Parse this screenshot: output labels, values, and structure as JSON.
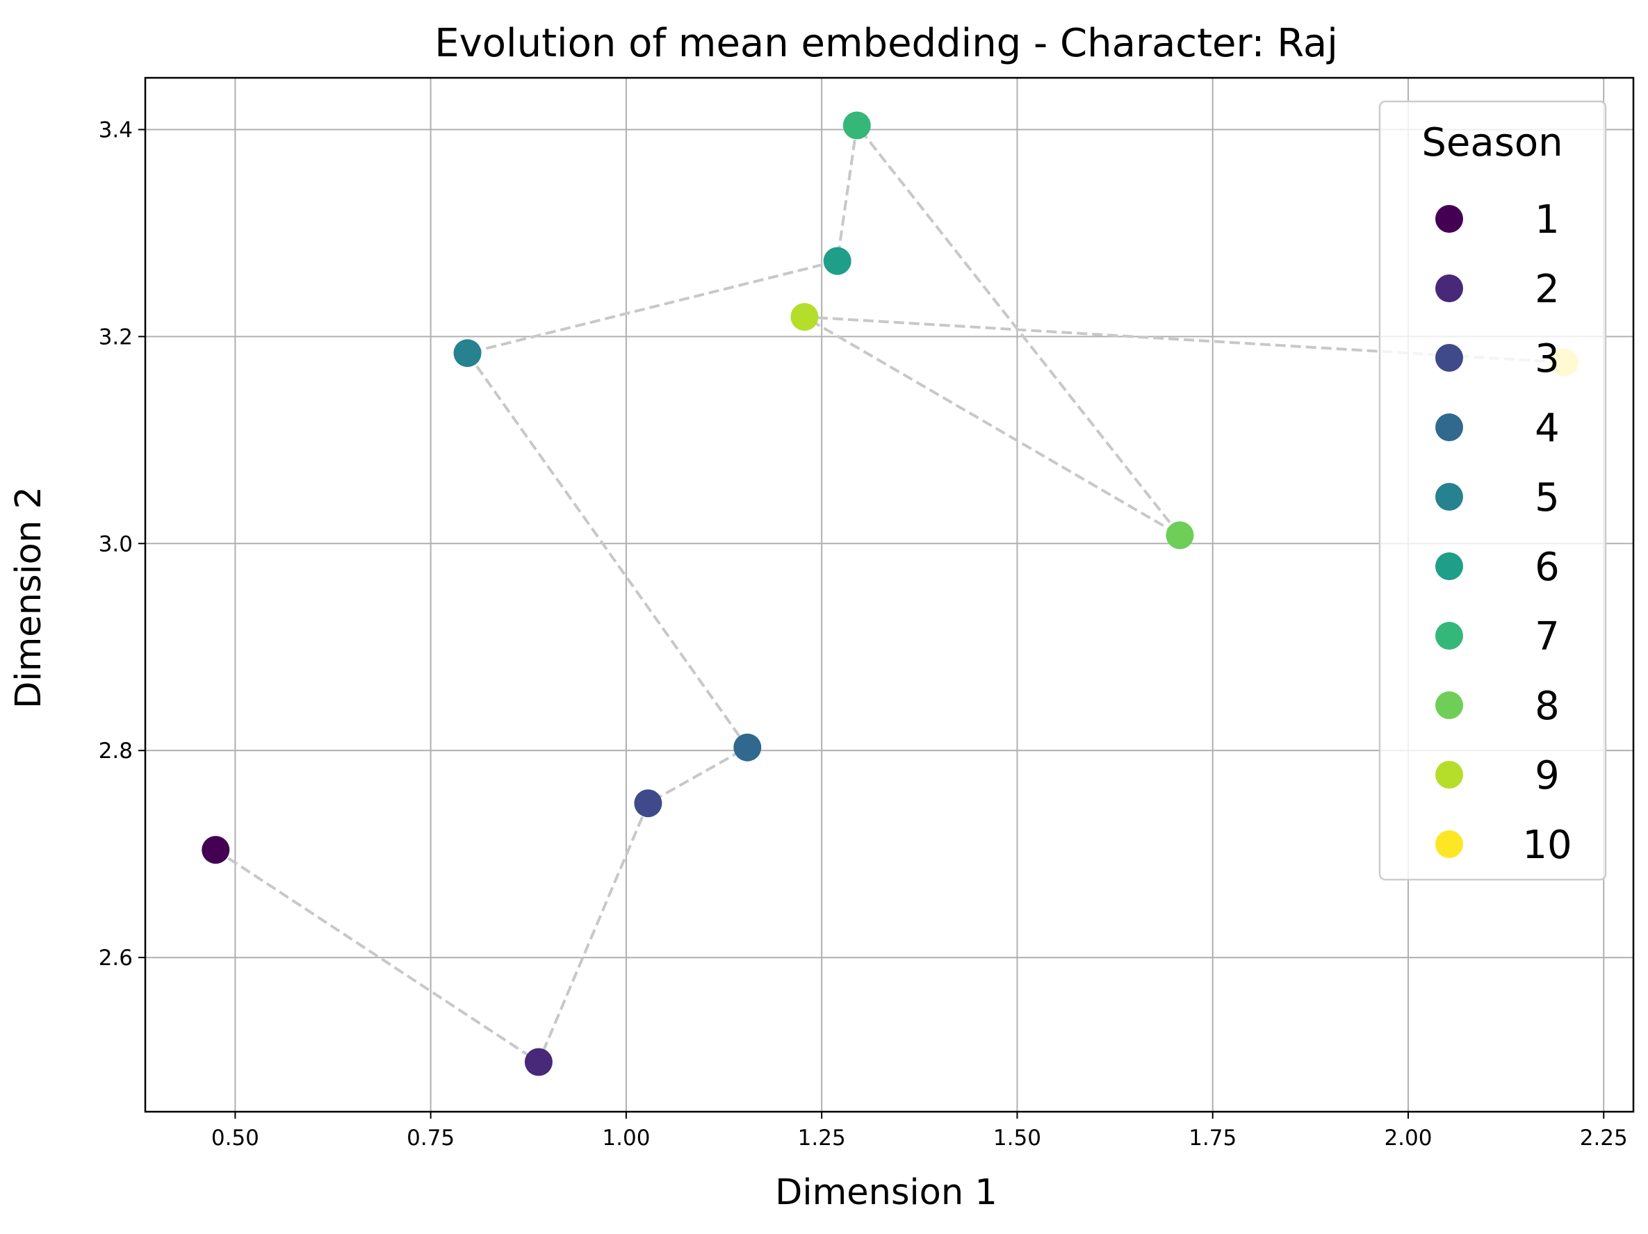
{
  "chart_data": {
    "type": "scatter",
    "title": "Evolution of mean embedding - Character: Raj",
    "xlabel": "Dimension 1",
    "ylabel": "Dimension 2",
    "xlim": [
      0.385,
      2.288
    ],
    "ylim": [
      2.451,
      3.45
    ],
    "xticks": [
      "0.50",
      "0.75",
      "1.00",
      "1.25",
      "1.50",
      "1.75",
      "2.00",
      "2.25"
    ],
    "yticks": [
      "2.6",
      "2.8",
      "3.0",
      "3.2",
      "3.4"
    ],
    "grid": true,
    "legend": {
      "title": "Season",
      "placement": "upper right",
      "entries": [
        "1",
        "2",
        "3",
        "4",
        "5",
        "6",
        "7",
        "8",
        "9",
        "10"
      ]
    },
    "path_style": {
      "color": "#c8c8c8",
      "dashed": true
    },
    "series": [
      {
        "name": "1",
        "x": 0.475,
        "y": 2.704,
        "color": "#440154"
      },
      {
        "name": "2",
        "x": 0.888,
        "y": 2.499,
        "color": "#482878"
      },
      {
        "name": "3",
        "x": 1.028,
        "y": 2.749,
        "color": "#3e4a89"
      },
      {
        "name": "4",
        "x": 1.155,
        "y": 2.803,
        "color": "#31688e"
      },
      {
        "name": "5",
        "x": 0.797,
        "y": 3.184,
        "color": "#26828e"
      },
      {
        "name": "6",
        "x": 1.27,
        "y": 3.273,
        "color": "#1f9e89"
      },
      {
        "name": "7",
        "x": 1.295,
        "y": 3.404,
        "color": "#35b779"
      },
      {
        "name": "8",
        "x": 1.708,
        "y": 3.008,
        "color": "#6ece58"
      },
      {
        "name": "9",
        "x": 1.228,
        "y": 3.219,
        "color": "#b5de2b"
      },
      {
        "name": "10",
        "x": 2.2,
        "y": 3.175,
        "color": "#fde725"
      }
    ]
  }
}
